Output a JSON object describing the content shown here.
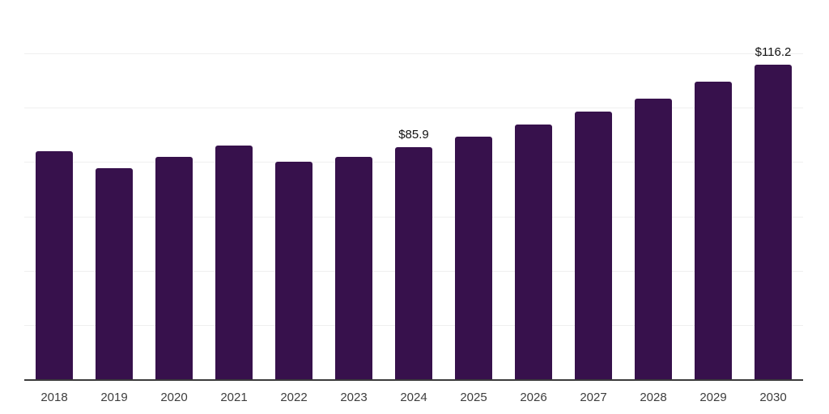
{
  "chart_data": {
    "type": "bar",
    "title": "",
    "xlabel": "",
    "ylabel": "",
    "categories": [
      "2018",
      "2019",
      "2020",
      "2021",
      "2022",
      "2023",
      "2024",
      "2025",
      "2026",
      "2027",
      "2028",
      "2029",
      "2030"
    ],
    "values": [
      84.4,
      78.0,
      82.1,
      86.3,
      80.4,
      82.3,
      85.9,
      89.8,
      94.2,
      98.9,
      103.6,
      110.0,
      116.2
    ],
    "data_labels": [
      "",
      "",
      "",
      "",
      "",
      "",
      "$85.9",
      "",
      "",
      "",
      "",
      "",
      "$116.2"
    ],
    "ylim": [
      0,
      140
    ],
    "grid": true,
    "gridline_values": [
      20,
      40,
      60,
      80,
      100,
      120,
      140
    ],
    "legend": false,
    "y_axis_labels_shown": false,
    "colors": {
      "bar": "#37114c",
      "gridline": "#efefef",
      "axis_line": "#3c3c3c",
      "tick_label": "#3d3d3d",
      "data_label": "#111111"
    }
  }
}
